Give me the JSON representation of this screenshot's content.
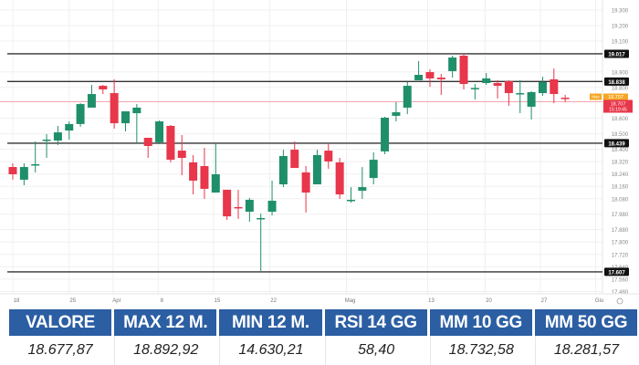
{
  "chart_data": {
    "type": "candlestick",
    "title": "",
    "colors": {
      "up": "#1f8f6a",
      "down": "#e8364a",
      "level_line": "#333333",
      "grid": "#f0f0f0",
      "last_price": "#f4a6ae",
      "max_tag": "#f5a623"
    },
    "ylim": [
      17465,
      19365
    ],
    "y_ticks": [
      "19.300",
      "19.200",
      "19.100",
      "18.900",
      "18.800",
      "18.600",
      "18.500",
      "18.400",
      "18.320",
      "18.240",
      "18.160",
      "18.080",
      "17.980",
      "17.880",
      "17.800",
      "17.720",
      "17.640",
      "17.560",
      "17.480"
    ],
    "y_tick_values": [
      19300,
      19200,
      19100,
      18900,
      18800,
      18600,
      18500,
      18400,
      18320,
      18240,
      18160,
      18080,
      17980,
      17880,
      17800,
      17720,
      17640,
      17560,
      17480
    ],
    "x_ticks": [
      {
        "label": "18",
        "at": 0
      },
      {
        "label": "25",
        "at": 5
      },
      {
        "label": "Apr",
        "at": 8.9
      },
      {
        "label": "8",
        "at": 12.9
      },
      {
        "label": "15",
        "at": 17.8
      },
      {
        "label": "22",
        "at": 22.8
      },
      {
        "label": "Mag",
        "at": 29.6
      },
      {
        "label": "13",
        "at": 36.8
      },
      {
        "label": "20",
        "at": 41.9
      },
      {
        "label": "27",
        "at": 46.8
      },
      {
        "label": "Giu",
        "at": 51.7
      }
    ],
    "levels": [
      {
        "value": 19017,
        "label": "19.017"
      },
      {
        "value": 18838,
        "label": "18.838"
      },
      {
        "value": 18439,
        "label": "18.439"
      },
      {
        "value": 17607,
        "label": "17.607"
      }
    ],
    "last_price": {
      "value": 18707,
      "label": "18.707",
      "time": "15:19:45"
    },
    "max_tag": {
      "label": "Max",
      "value_label": "18.707"
    },
    "candles": [
      [
        18285,
        18309,
        18203,
        18238
      ],
      [
        18203,
        18309,
        18167,
        18285
      ],
      [
        18297,
        18450,
        18250,
        18303
      ],
      [
        18456,
        18498,
        18344,
        18462
      ],
      [
        18456,
        18551,
        18427,
        18509
      ],
      [
        18521,
        18580,
        18462,
        18563
      ],
      [
        18563,
        18698,
        18545,
        18692
      ],
      [
        18669,
        18816,
        18669,
        18757
      ],
      [
        18810,
        18816,
        18757,
        18787
      ],
      [
        18763,
        18852,
        18533,
        18568
      ],
      [
        18568,
        18645,
        18515,
        18645
      ],
      [
        18633,
        18692,
        18439,
        18669
      ],
      [
        18474,
        18474,
        18344,
        18421
      ],
      [
        18445,
        18586,
        18433,
        18580
      ],
      [
        18551,
        18557,
        18315,
        18332
      ],
      [
        18391,
        18492,
        18232,
        18344
      ],
      [
        18315,
        18362,
        18108,
        18197
      ],
      [
        18291,
        18409,
        18079,
        18144
      ],
      [
        18120,
        18439,
        18120,
        18238
      ],
      [
        18138,
        18138,
        17943,
        17966
      ],
      [
        18026,
        18138,
        17949,
        18020
      ],
      [
        17996,
        18085,
        17931,
        18073
      ],
      [
        17949,
        17984,
        17613,
        17955
      ],
      [
        17996,
        18197,
        17972,
        18067
      ],
      [
        18173,
        18397,
        18155,
        18356
      ],
      [
        18397,
        18450,
        18279,
        18279
      ],
      [
        18250,
        18291,
        17990,
        18120
      ],
      [
        18173,
        18397,
        18173,
        18362
      ],
      [
        18391,
        18433,
        18273,
        18321
      ],
      [
        18315,
        18344,
        18079,
        18108
      ],
      [
        18067,
        18155,
        18055,
        18073
      ],
      [
        18132,
        18285,
        18079,
        18155
      ],
      [
        18214,
        18380,
        18173,
        18332
      ],
      [
        18386,
        18610,
        18368,
        18604
      ],
      [
        18616,
        18704,
        18580,
        18639
      ],
      [
        18669,
        18834,
        18627,
        18810
      ],
      [
        18846,
        18970,
        18846,
        18881
      ],
      [
        18899,
        18917,
        18804,
        18858
      ],
      [
        18863,
        18887,
        18751,
        18852
      ],
      [
        18905,
        19005,
        18863,
        18993
      ],
      [
        19005,
        19017,
        18787,
        18822
      ],
      [
        18790,
        18822,
        18722,
        18796
      ],
      [
        18828,
        18893,
        18816,
        18858
      ],
      [
        18828,
        18846,
        18728,
        18810
      ],
      [
        18840,
        18846,
        18681,
        18763
      ],
      [
        18757,
        18846,
        18633,
        18763
      ],
      [
        18675,
        18775,
        18592,
        18769
      ],
      [
        18763,
        18869,
        18745,
        18834
      ],
      [
        18852,
        18922,
        18698,
        18757
      ],
      [
        18733,
        18751,
        18704,
        18728
      ]
    ]
  },
  "table": {
    "headers": [
      "VALORE",
      "MAX 12 M.",
      "MIN 12 M.",
      "RSI 14 GG",
      "MM 10 GG",
      "MM 50 GG"
    ],
    "values": [
      "18.677,87",
      "18.892,92",
      "14.630,21",
      "58,40",
      "18.732,58",
      "18.281,57"
    ]
  }
}
